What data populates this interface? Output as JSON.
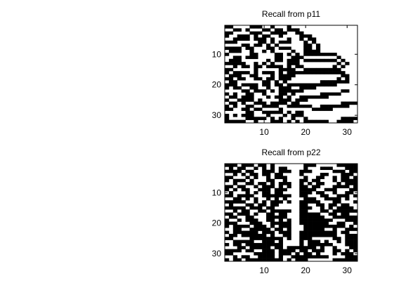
{
  "chart_data": [
    {
      "type": "heatmap",
      "title": "Recall from p11",
      "colormap": [
        "#ffffff",
        "#000000"
      ],
      "xlim": [
        0.5,
        32.5
      ],
      "ylim": [
        0.5,
        32.5
      ],
      "xticks": [
        10,
        20,
        30
      ],
      "yticks": [
        10,
        20,
        30
      ],
      "rows": [
        "11000011100100010000000000000000",
        "00110100011011011100000000000000",
        "11000011100111100110000000000000",
        "10011101011001000011100000000000",
        "00111101110100010010110000000000",
        "11100000110101110001010000000000",
        "00001101101010000001101000000000",
        "11110110001101110001101000000000",
        "01110010010100001001111000000000",
        "10000011000011010101111111100000",
        "00110111000011001110000000010000",
        "01110000001011011101111111101000",
        "11111001010100011100000000010100",
        "00101101101111010110000000101000",
        "11000001000001111001111111110000",
        "10111101011101011111111111111000",
        "01110011000101111000000000001100",
        "11011001101101110000000000010100",
        "01100000011010100000000111111100",
        "11101111011011011111111111100000",
        "10110011001001110011110000000000",
        "00001101110101111110000000001100",
        "10100110010001101000000111110000",
        "01101110001011010011111110000000",
        "10011110100001110111000000000000",
        "01101001110111101100000000001111",
        "10100110011110011111100111111100",
        "11001101100001000000011111000000",
        "00000110011111010110000000000000",
        "10101110001000101110000000000000",
        "10000111110101001001000000001111",
        "11111001000111010101111110011110"
      ]
    },
    {
      "type": "heatmap",
      "title": "Recall from p22",
      "colormap": [
        "#ffffff",
        "#000000"
      ],
      "xlim": [
        0.5,
        32.5
      ],
      "ylim": [
        0.5,
        32.5
      ],
      "xticks": [
        10,
        20,
        30
      ],
      "yticks": [
        10,
        20,
        30
      ],
      "rows": [
        "11101110110100000001110000011111",
        "01011001010101100001000111000111",
        "11110110011101110011100000111011",
        "00101011011011000010000110001110",
        "11000101001011100001001100101101",
        "10111010001100100011011000101111",
        "00100110110101110010101100010111",
        "11011001011101010011011000111101",
        "10101100111011100011110011100011",
        "01000101011011000011101100100110",
        "11011110011111110011000110011101",
        "00110101001010100001110011110100",
        "11111001010111010011111000110001",
        "01000110110110000011001101101100",
        "11111011101100000011100101011110",
        "00101100110111110011000110111111",
        "11011101001101100011111001101100",
        "01100110001111100011111100111111",
        "10010111001101010011111111000111",
        "11100011100111110011111110011001",
        "10111101110101110001111111111010",
        "00110011111011010001111100100111",
        "10111111011101110011111111101100",
        "01101111110100110011111111100111",
        "11000011111111010011100000110111",
        "00111110011101000010111010010111",
        "10110111111111000010111111000111",
        "00011011111011011111110100100011",
        "11110110011101111011011100110101",
        "11000001111101110101101000101110",
        "00101100111101001111111110000111",
        "10110111111111010111000000111111"
      ]
    }
  ]
}
